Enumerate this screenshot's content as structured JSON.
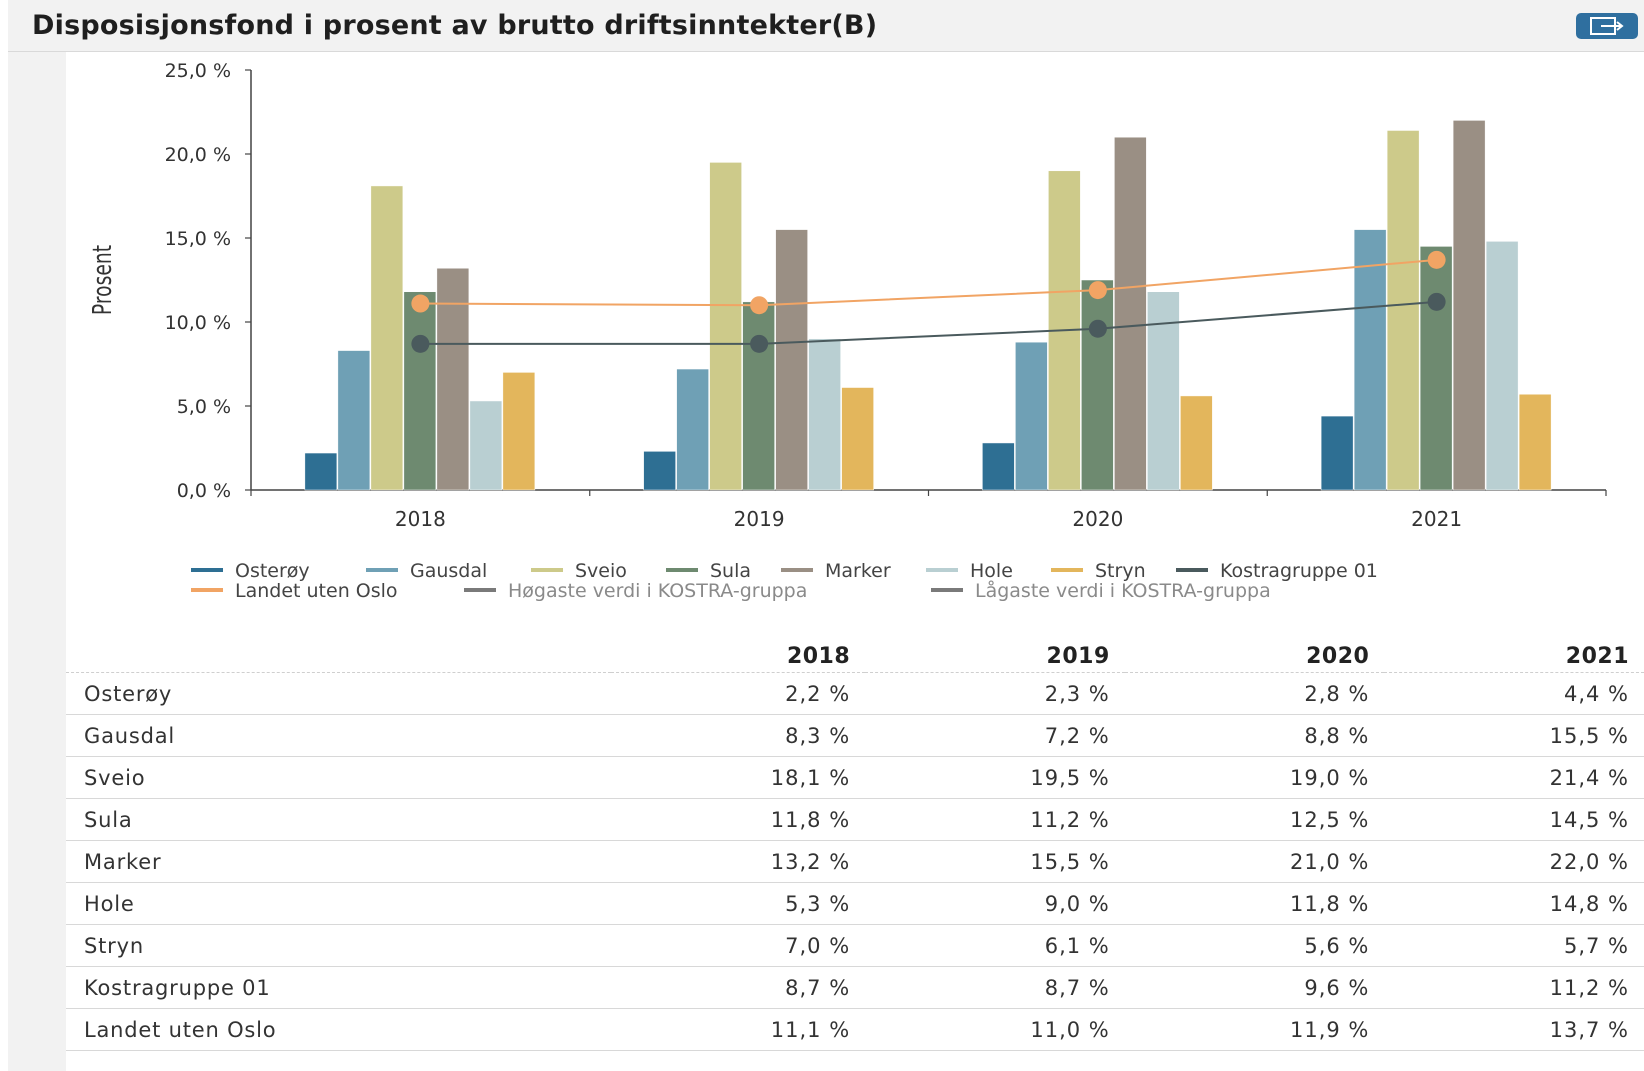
{
  "header": {
    "title": "Disposisjonsfond i prosent av brutto driftsinntekter(B)"
  },
  "chart_data": {
    "type": "bar",
    "ylabel": "Prosent",
    "ylim": [
      0,
      25
    ],
    "yticks": [
      "0,0 %",
      "5,0 %",
      "10,0 %",
      "15,0 %",
      "20,0 %",
      "25,0 %"
    ],
    "categories": [
      "2018",
      "2019",
      "2020",
      "2021"
    ],
    "series": [
      {
        "name": "Osterøy",
        "values": [
          2.2,
          2.3,
          2.8,
          4.4
        ],
        "color": "#2e6f93",
        "kind": "bar"
      },
      {
        "name": "Gausdal",
        "values": [
          8.3,
          7.2,
          8.8,
          15.5
        ],
        "color": "#6fa0b5",
        "kind": "bar"
      },
      {
        "name": "Sveio",
        "values": [
          18.1,
          19.5,
          19.0,
          21.4
        ],
        "color": "#cdca8a",
        "kind": "bar"
      },
      {
        "name": "Sula",
        "values": [
          11.8,
          11.2,
          12.5,
          14.5
        ],
        "color": "#6e8a70",
        "kind": "bar"
      },
      {
        "name": "Marker",
        "values": [
          13.2,
          15.5,
          21.0,
          22.0
        ],
        "color": "#9a8f84",
        "kind": "bar"
      },
      {
        "name": "Hole",
        "values": [
          5.3,
          9.0,
          11.8,
          14.8
        ],
        "color": "#b9cfd2",
        "kind": "bar"
      },
      {
        "name": "Stryn",
        "values": [
          7.0,
          6.1,
          5.6,
          5.7
        ],
        "color": "#e3b65c",
        "kind": "bar"
      },
      {
        "name": "Kostragruppe 01",
        "values": [
          8.7,
          8.7,
          9.6,
          11.2
        ],
        "color": "#4a5a5d",
        "kind": "line"
      },
      {
        "name": "Landet uten Oslo",
        "values": [
          11.1,
          11.0,
          11.9,
          13.7
        ],
        "color": "#f1a464",
        "kind": "line"
      }
    ],
    "legend_extra": [
      {
        "name": "Høgaste verdi i KOSTRA-gruppa",
        "color": "#7a7a7a"
      },
      {
        "name": "Lågaste verdi i KOSTRA-gruppa",
        "color": "#7a7a7a"
      }
    ],
    "legend_position": "bottom"
  },
  "table": {
    "headers": [
      "",
      "2018",
      "2019",
      "2020",
      "2021"
    ],
    "rows": [
      [
        "Osterøy",
        "2,2 %",
        "2,3 %",
        "2,8 %",
        "4,4 %"
      ],
      [
        "Gausdal",
        "8,3 %",
        "7,2 %",
        "8,8 %",
        "15,5 %"
      ],
      [
        "Sveio",
        "18,1 %",
        "19,5 %",
        "19,0 %",
        "21,4 %"
      ],
      [
        "Sula",
        "11,8 %",
        "11,2 %",
        "12,5 %",
        "14,5 %"
      ],
      [
        "Marker",
        "13,2 %",
        "15,5 %",
        "21,0 %",
        "22,0 %"
      ],
      [
        "Hole",
        "5,3 %",
        "9,0 %",
        "11,8 %",
        "14,8 %"
      ],
      [
        "Stryn",
        "7,0 %",
        "6,1 %",
        "5,6 %",
        "5,7 %"
      ],
      [
        "Kostragruppe 01",
        "8,7 %",
        "8,7 %",
        "9,6 %",
        "11,2 %"
      ],
      [
        "Landet uten Oslo",
        "11,1 %",
        "11,0 %",
        "11,9 %",
        "13,7 %"
      ]
    ]
  }
}
